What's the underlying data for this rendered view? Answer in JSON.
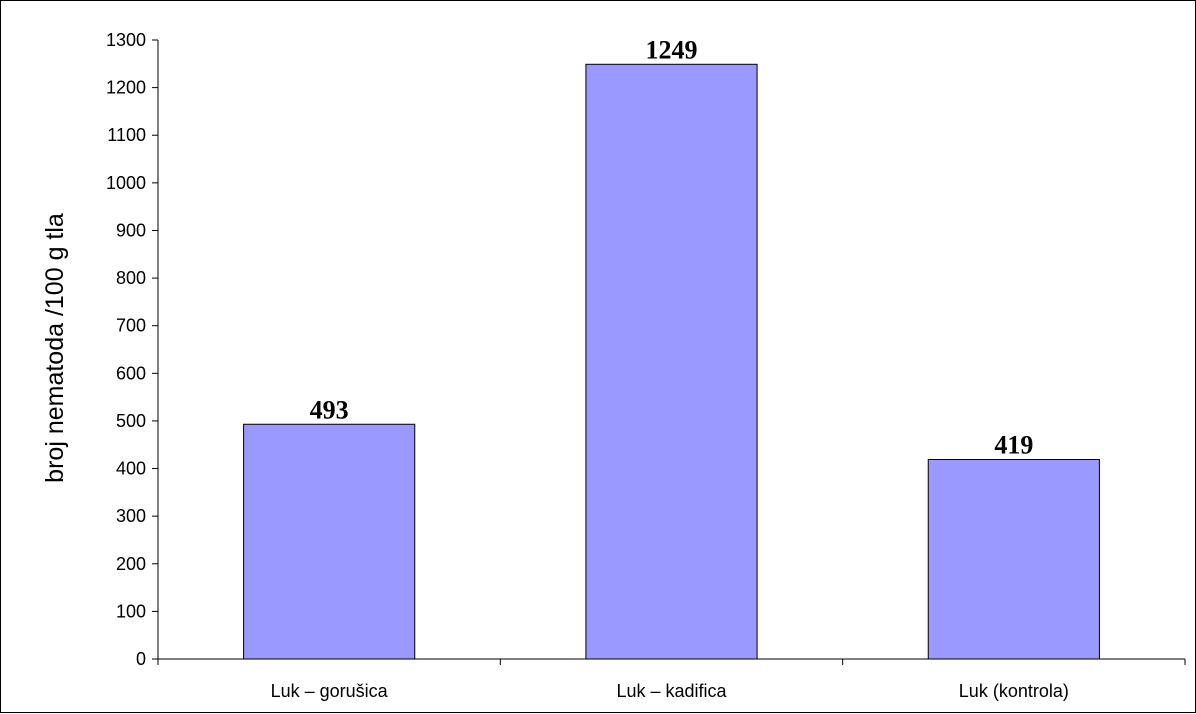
{
  "chart_data": {
    "type": "bar",
    "categories": [
      "Luk – gorušica",
      "Luk – kadifica",
      "Luk (kontrola)"
    ],
    "values": [
      493,
      1249,
      419
    ],
    "data_labels": [
      "493",
      "1249",
      "419"
    ],
    "title": "",
    "xlabel": "",
    "ylabel": "broj nematoda /100 g tla",
    "ylim": [
      0,
      1300
    ],
    "yticks": [
      0,
      100,
      200,
      300,
      400,
      500,
      600,
      700,
      800,
      900,
      1000,
      1100,
      1200,
      1300
    ],
    "grid": false,
    "legend": "none",
    "bar_color": "#9999ff",
    "bar_stroke": "#000000"
  }
}
